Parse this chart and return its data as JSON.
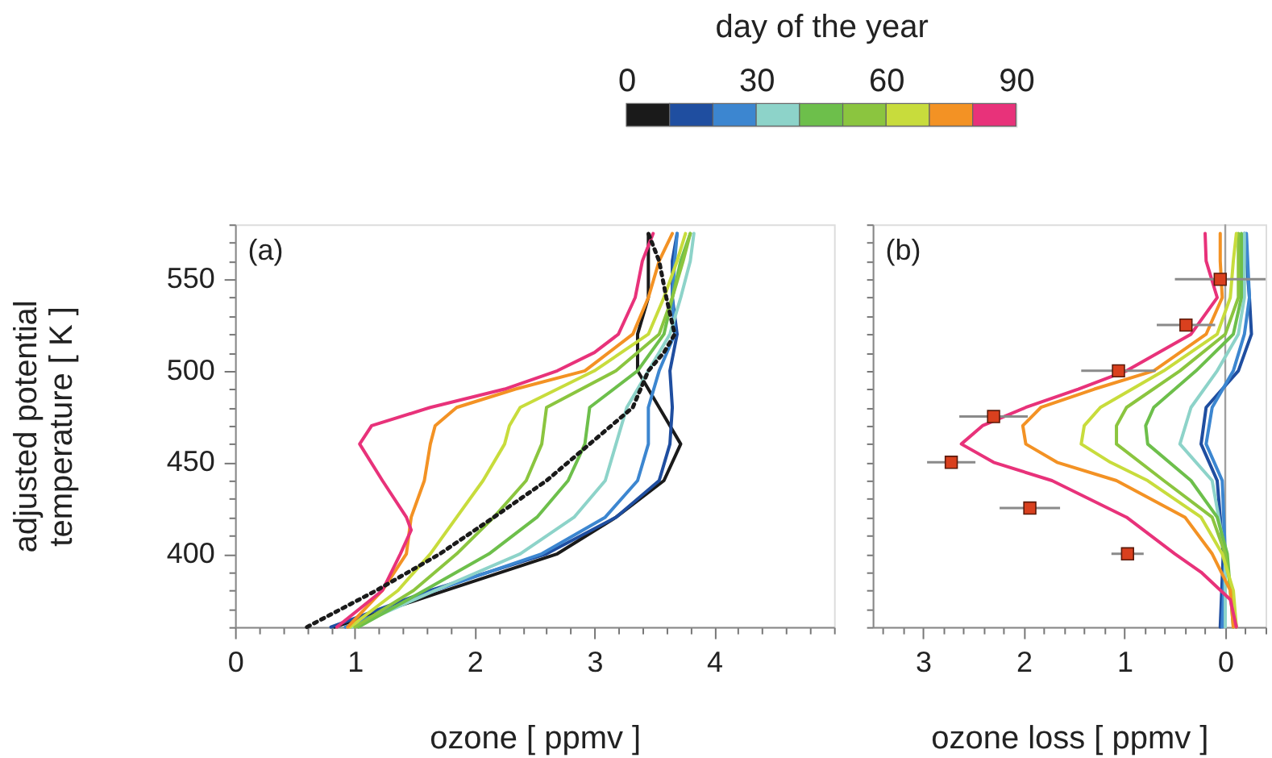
{
  "chart_data": [
    {
      "type": "line",
      "clabel": "day of the year",
      "clim": [
        0,
        90
      ],
      "cticks": [
        0,
        30,
        60,
        90
      ],
      "xlabel": "ozone [ ppmv ]",
      "ylabel": "adjusted potential temperature [ K ]",
      "annotations": [
        "(a)"
      ],
      "grid": false,
      "xlim": [
        0,
        5
      ],
      "ylim": [
        360,
        580
      ],
      "xticks": [
        0,
        {
          "value": 0.2,
          "label": null
        },
        {
          "value": 0.4,
          "label": null
        },
        {
          "value": 0.6,
          "label": null
        },
        {
          "value": 0.8,
          "label": null
        },
        1,
        {
          "value": 1.2,
          "label": null
        },
        {
          "value": 1.4,
          "label": null
        },
        {
          "value": 1.6,
          "label": null
        },
        {
          "value": 1.8,
          "label": null
        },
        2,
        {
          "value": 2.2,
          "label": null
        },
        {
          "value": 2.4,
          "label": null
        },
        {
          "value": 2.6,
          "label": null
        },
        {
          "value": 2.8,
          "label": null
        },
        3,
        {
          "value": 3.2,
          "label": null
        },
        {
          "value": 3.4,
          "label": null
        },
        {
          "value": 3.6,
          "label": null
        },
        {
          "value": 3.8,
          "label": null
        },
        4,
        {
          "value": 4.2,
          "label": null
        },
        {
          "value": 4.4,
          "label": null
        },
        {
          "value": 4.6,
          "label": null
        },
        {
          "value": 4.8,
          "label": null
        },
        {
          "value": 5,
          "label": null
        }
      ],
      "yticks": [
        {
          "value": 360,
          "label": null
        },
        {
          "value": 370,
          "label": null
        },
        {
          "value": 380,
          "label": null
        },
        {
          "value": 390,
          "label": null
        },
        400,
        {
          "value": 410,
          "label": null
        },
        {
          "value": 420,
          "label": null
        },
        {
          "value": 430,
          "label": null
        },
        {
          "value": 440,
          "label": null
        },
        450,
        {
          "value": 460,
          "label": null
        },
        {
          "value": 470,
          "label": null
        },
        {
          "value": 480,
          "label": null
        },
        {
          "value": 490,
          "label": null
        },
        500,
        {
          "value": 510,
          "label": null
        },
        {
          "value": 520,
          "label": null
        },
        {
          "value": 530,
          "label": null
        },
        {
          "value": 540,
          "label": null
        },
        550,
        {
          "value": 560,
          "label": null
        },
        {
          "value": 570,
          "label": null
        },
        {
          "value": 580,
          "label": null
        }
      ],
      "series": [
        {
          "color": "#1a1a1a",
          "x": [
            0.83,
            1.76,
            2.69,
            3.18,
            3.58,
            3.72,
            3.54,
            3.36,
            3.36,
            3.45,
            3.45,
            3.45
          ],
          "values": [
            360,
            380,
            400,
            420,
            440,
            460,
            480,
            500,
            520,
            540,
            560,
            575
          ]
        },
        {
          "color": "#1f4ea0",
          "x": [
            0.8,
            1.63,
            2.6,
            3.18,
            3.54,
            3.63,
            3.65,
            3.63,
            3.69,
            3.65,
            3.65,
            3.69
          ],
          "values": [
            360,
            380,
            400,
            420,
            440,
            460,
            480,
            500,
            520,
            540,
            560,
            575
          ]
        },
        {
          "color": "#3c86d0",
          "x": [
            0.92,
            1.67,
            2.56,
            3.09,
            3.36,
            3.45,
            3.45,
            3.54,
            3.67,
            3.65,
            3.67,
            3.69
          ],
          "values": [
            360,
            380,
            400,
            420,
            440,
            460,
            480,
            500,
            520,
            540,
            560,
            575
          ]
        },
        {
          "color": "#8dd3c9",
          "x": [
            0.98,
            1.67,
            2.38,
            2.83,
            3.09,
            3.18,
            3.27,
            3.45,
            3.63,
            3.72,
            3.8,
            3.83
          ],
          "values": [
            360,
            380,
            400,
            420,
            440,
            460,
            480,
            500,
            520,
            540,
            560,
            575
          ]
        },
        {
          "color": "#6dbf4b",
          "x": [
            1.03,
            1.58,
            2.12,
            2.52,
            2.78,
            2.92,
            2.96,
            3.36,
            3.58,
            3.65,
            3.72,
            3.8
          ],
          "values": [
            360,
            380,
            400,
            420,
            440,
            460,
            480,
            500,
            520,
            540,
            560,
            575
          ]
        },
        {
          "color": "#8bc53f",
          "x": [
            1.0,
            1.49,
            1.85,
            2.16,
            2.43,
            2.56,
            2.6,
            3.18,
            3.54,
            3.65,
            3.74,
            3.8
          ],
          "values": [
            360,
            380,
            400,
            420,
            440,
            460,
            480,
            500,
            520,
            540,
            560,
            575
          ]
        },
        {
          "color": "#c8dc3c",
          "x": [
            0.96,
            1.36,
            1.63,
            1.85,
            2.07,
            2.25,
            2.29,
            2.38,
            3.0,
            3.45,
            3.58,
            3.69,
            3.76
          ],
          "values": [
            360,
            380,
            400,
            420,
            440,
            460,
            470,
            480,
            500,
            520,
            540,
            560,
            575
          ]
        },
        {
          "color": "#f39224",
          "x": [
            0.94,
            1.23,
            1.43,
            1.47,
            1.58,
            1.63,
            1.67,
            1.85,
            2.34,
            2.92,
            3.32,
            3.45,
            3.54,
            3.65
          ],
          "values": [
            360,
            380,
            400,
            420,
            440,
            460,
            470,
            480,
            490,
            500,
            520,
            540,
            560,
            575
          ]
        },
        {
          "color": "#e8327a",
          "x": [
            0.85,
            1.23,
            1.38,
            1.47,
            1.43,
            1.23,
            1.04,
            1.14,
            1.63,
            2.25,
            2.69,
            3.0,
            3.2,
            3.34,
            3.4,
            3.49
          ],
          "values": [
            360,
            380,
            400,
            413,
            420,
            440,
            460,
            470,
            480,
            490,
            500,
            510,
            520,
            540,
            560,
            575
          ]
        },
        {
          "color": "#1a1a1a",
          "line_style": "dotted",
          "x": [
            0.6,
            1.18,
            1.71,
            2.16,
            2.6,
            2.96,
            3.32,
            3.45,
            3.58,
            3.67,
            3.6,
            3.54,
            3.45
          ],
          "values": [
            360,
            380,
            400,
            420,
            440,
            460,
            480,
            500,
            510,
            520,
            540,
            560,
            575
          ]
        }
      ]
    },
    {
      "type": "line",
      "xlabel": "ozone loss [ ppmv ]",
      "annotations": [
        "(b)"
      ],
      "grid": false,
      "tick_labels": "x",
      "xlim": [
        3.5,
        -0.4
      ],
      "ylim": [
        360,
        580
      ],
      "xticks": [
        {
          "value": -0.4,
          "label": null
        },
        {
          "value": -0.2,
          "label": null
        },
        0,
        {
          "value": 0.2,
          "label": null
        },
        {
          "value": 0.4,
          "label": null
        },
        {
          "value": 0.6,
          "label": null
        },
        {
          "value": 0.8,
          "label": null
        },
        1,
        {
          "value": 1.2,
          "label": null
        },
        {
          "value": 1.4,
          "label": null
        },
        {
          "value": 1.6,
          "label": null
        },
        {
          "value": 1.8,
          "label": null
        },
        2,
        {
          "value": 2.2,
          "label": null
        },
        {
          "value": 2.4,
          "label": null
        },
        {
          "value": 2.6,
          "label": null
        },
        {
          "value": 2.8,
          "label": null
        },
        3,
        {
          "value": 3.2,
          "label": null
        },
        {
          "value": 3.4,
          "label": null
        }
      ],
      "yticks": [
        {
          "value": 360,
          "label": null
        },
        {
          "value": 370,
          "label": null
        },
        {
          "value": 380,
          "label": null
        },
        {
          "value": 390,
          "label": null
        },
        {
          "value": 400,
          "label": null
        },
        {
          "value": 410,
          "label": null
        },
        {
          "value": 420,
          "label": null
        },
        {
          "value": 430,
          "label": null
        },
        {
          "value": 440,
          "label": null
        },
        {
          "value": 450,
          "label": null
        },
        {
          "value": 460,
          "label": null
        },
        {
          "value": 470,
          "label": null
        },
        {
          "value": 480,
          "label": null
        },
        {
          "value": 490,
          "label": null
        },
        {
          "value": 500,
          "label": null
        },
        {
          "value": 510,
          "label": null
        },
        {
          "value": 520,
          "label": null
        },
        {
          "value": 530,
          "label": null
        },
        {
          "value": 540,
          "label": null
        },
        {
          "value": 550,
          "label": null
        },
        {
          "value": 560,
          "label": null
        },
        {
          "value": 570,
          "label": null
        },
        {
          "value": 580,
          "label": null
        }
      ],
      "ref_lines": [
        {
          "axis": "x",
          "value": 0,
          "color": "#a0a0a0"
        }
      ],
      "series": [
        {
          "color": "#1f4ea0",
          "x": [
            0.05,
            0.02,
            0.08,
            0.24,
            0.19,
            -0.13,
            -0.26,
            -0.24,
            -0.19
          ],
          "values": [
            360,
            400,
            440,
            460,
            480,
            500,
            520,
            540,
            575
          ]
        },
        {
          "color": "#3c86d0",
          "x": [
            0.03,
            0,
            0.03,
            0.19,
            0.13,
            -0.08,
            -0.19,
            -0.24,
            -0.21
          ],
          "values": [
            360,
            400,
            440,
            460,
            480,
            500,
            520,
            540,
            575
          ]
        },
        {
          "color": "#8dd3c9",
          "x": [
            0,
            0,
            0.13,
            0.45,
            0.34,
            0.08,
            -0.13,
            -0.19,
            -0.19
          ],
          "values": [
            360,
            400,
            440,
            460,
            480,
            500,
            520,
            540,
            575
          ]
        },
        {
          "color": "#6dbf4b",
          "x": [
            -0.08,
            -0.02,
            0.08,
            0.34,
            0.77,
            0.79,
            0.71,
            0.29,
            -0.08,
            -0.16,
            -0.16
          ],
          "values": [
            360,
            400,
            420,
            440,
            460,
            470,
            480,
            500,
            520,
            540,
            575
          ]
        },
        {
          "color": "#8bc53f",
          "x": [
            -0.11,
            0,
            0.13,
            0.61,
            1.08,
            1.08,
            0.98,
            0.45,
            0,
            -0.13,
            -0.13
          ],
          "values": [
            360,
            400,
            420,
            440,
            460,
            470,
            480,
            500,
            520,
            540,
            575
          ]
        },
        {
          "color": "#c8dc3c",
          "x": [
            -0.11,
            -0.08,
            0.03,
            0.24,
            0.77,
            1.14,
            1.43,
            1.4,
            1.24,
            0.61,
            0.08,
            -0.05,
            -0.08,
            -0.11
          ],
          "values": [
            360,
            380,
            400,
            420,
            440,
            450,
            460,
            470,
            480,
            500,
            520,
            540,
            560,
            575
          ]
        },
        {
          "color": "#f39224",
          "x": [
            -0.08,
            -0.05,
            0.13,
            0.4,
            1.08,
            1.67,
            1.98,
            2.01,
            1.83,
            1.3,
            0.71,
            0.19,
            0.03,
            0.05,
            0.05
          ],
          "values": [
            360,
            380,
            400,
            420,
            440,
            450,
            460,
            470,
            480,
            490,
            500,
            520,
            540,
            560,
            575
          ]
        },
        {
          "color": "#e8327a",
          "x": [
            -0.11,
            -0.05,
            0.24,
            0.5,
            0.98,
            1.72,
            2.3,
            2.62,
            2.41,
            1.98,
            1.46,
            0.98,
            0.34,
            0.08,
            0.19,
            0.2
          ],
          "values": [
            360,
            375,
            390,
            400,
            420,
            440,
            450,
            460,
            470,
            480,
            490,
            500,
            520,
            540,
            560,
            575
          ]
        },
        {
          "type": "scatter",
          "marker": "square",
          "color": "#d9401e",
          "x": [
            0.05,
            0.39,
            1.06,
            2.3,
            2.72,
            1.94,
            0.97
          ],
          "values": [
            550,
            525,
            500,
            475,
            450,
            425,
            400
          ],
          "xerrors": [
            0.45,
            0.29,
            0.37,
            0.34,
            0.24,
            0.3,
            0.16
          ]
        }
      ]
    }
  ]
}
